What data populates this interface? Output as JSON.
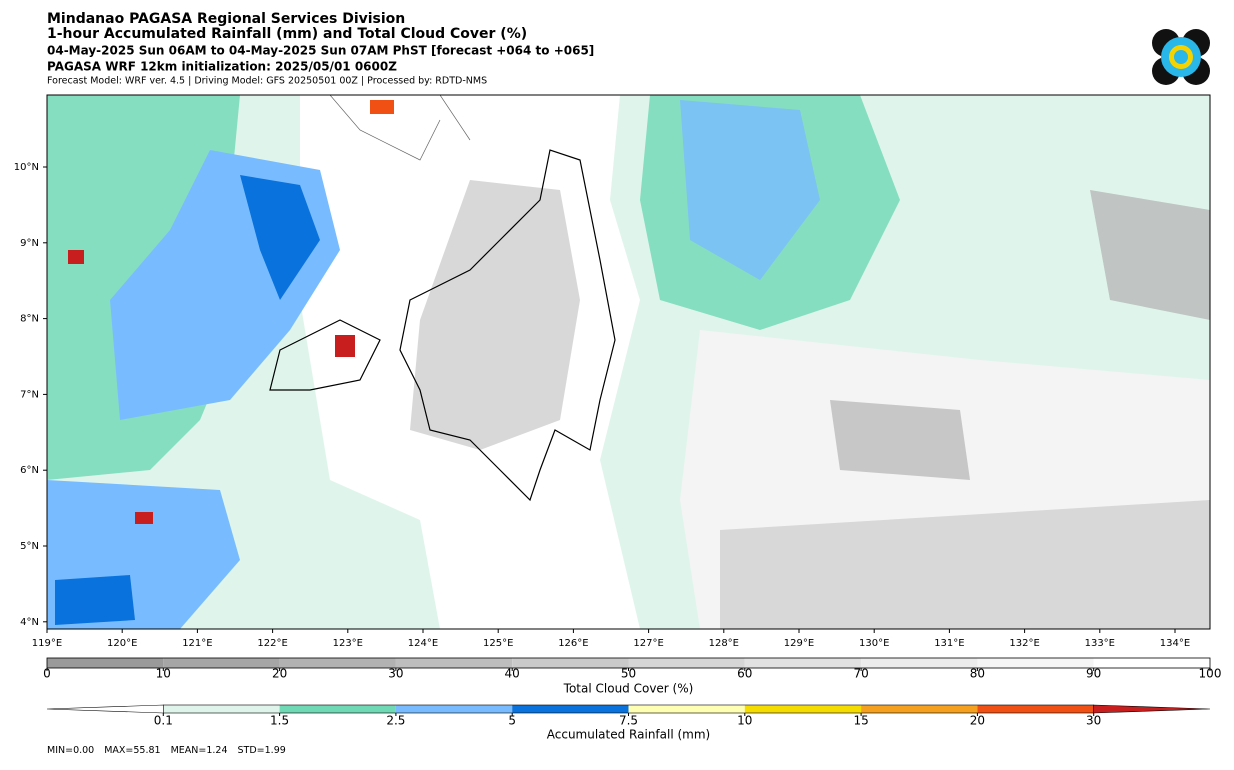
{
  "header": {
    "agency": "Mindanao PAGASA Regional Services Division",
    "title": "1-hour Accumulated Rainfall (mm) and Total Cloud Cover (%)",
    "period": "04-May-2025 Sun 06AM to 04-May-2025 Sun 07AM PhST [forecast +064 to +065]",
    "init": "PAGASA WRF 12km initialization: 2025/05/01 0600Z",
    "model": "Forecast Model: WRF ver. 4.5 | Driving Model: GFS 20250501 00Z | Processed by: RDTD-NMS"
  },
  "map": {
    "lat_labels": [
      "10°N",
      "9°N",
      "8°N",
      "7°N",
      "6°N",
      "5°N",
      "4°N"
    ],
    "lon_labels": [
      "119°E",
      "120°E",
      "121°E",
      "122°E",
      "123°E",
      "124°E",
      "125°E",
      "126°E",
      "127°E",
      "128°E",
      "129°E",
      "130°E",
      "131°E",
      "132°E",
      "133°E",
      "134°E"
    ]
  },
  "cloud_colorbar": {
    "title": "Total Cloud Cover (%)",
    "ticks": [
      0,
      10,
      20,
      30,
      40,
      50,
      60,
      70,
      80,
      90,
      100
    ],
    "colors": [
      "#9a9a9a",
      "#a6a6a6",
      "#b2b2b2",
      "#bebebe",
      "#cacaca",
      "#d6d6d6",
      "#e2e2e2",
      "#ececec",
      "#f5f5f5",
      "#ffffff"
    ]
  },
  "rain_colorbar": {
    "title": "Accumulated Rainfall (mm)",
    "labels": [
      "0.1",
      "1.5",
      "2.5",
      "5",
      "7.5",
      "10",
      "15",
      "20",
      "30"
    ],
    "colors": [
      "#dff5ec",
      "#6fd8b5",
      "#78bcff",
      "#0a72dc",
      "#ffffb4",
      "#f5dc00",
      "#f5a01e",
      "#f05014"
    ],
    "under_color": "#ffffff",
    "over_color": "#c81e1e"
  },
  "stats": [
    "MIN=0.00",
    "MAX=55.81",
    "MEAN=1.24",
    "STD=1.99"
  ]
}
